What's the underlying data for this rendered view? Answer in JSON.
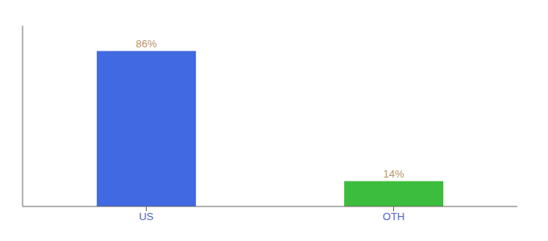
{
  "chart_data": {
    "type": "bar",
    "categories": [
      "US",
      "OTH"
    ],
    "values": [
      86,
      14
    ],
    "value_labels": [
      "86%",
      "14%"
    ],
    "colors": [
      "#4169e1",
      "#3dbd3d"
    ],
    "ylim": [
      0,
      100
    ],
    "data_labels": true,
    "tick_labels": "x",
    "grid": false
  }
}
